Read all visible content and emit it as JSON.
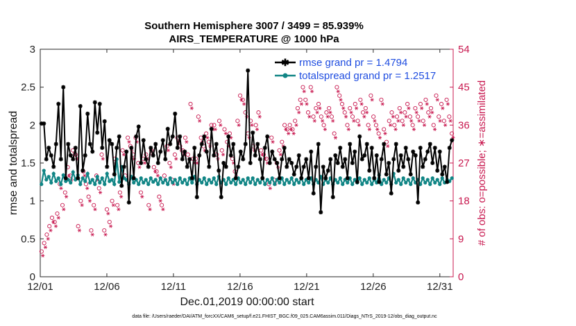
{
  "chart_data": {
    "type": "line",
    "title_line1": "Southern Hemisphere 3007 / 3499 = 85.939%",
    "title_line2": "AIRS_TEMPERATURE @ 1000 hPa",
    "ylabel": "rmse and totalspread",
    "ylabel_right": "# of obs: o=possible; ∗=assimilated",
    "xlabel": "Dec.01,2019 00:00:00 start",
    "footnote": "data file: /Users/raeder/DAI/ATM_forcXX/CAM6_setup/f.e21.FHIST_BGC.f09_025.CAM6assim.011/Diags_NTrS_2019-12/obs_diag_output.nc",
    "x_ticks": [
      1,
      6,
      11,
      16,
      21,
      26,
      31
    ],
    "x_tick_labels": [
      "12/01",
      "12/06",
      "12/11",
      "12/16",
      "12/21",
      "12/26",
      "12/31"
    ],
    "xlim": [
      1,
      32
    ],
    "ylim": [
      0,
      3
    ],
    "y_ticks": [
      0,
      0.5,
      1,
      1.5,
      2,
      2.5,
      3
    ],
    "y_tick_labels": [
      "0",
      "0.5",
      "1",
      "1.5",
      "2",
      "2.5",
      "3"
    ],
    "ylim_right": [
      0,
      54
    ],
    "y_ticks_right": [
      0,
      9,
      18,
      27,
      36,
      45,
      54
    ],
    "y_tick_labels_right": [
      "0",
      "9",
      "18",
      "27",
      "36",
      "45",
      "54"
    ],
    "series": [
      {
        "name": "rmse grand pr = 1.4794",
        "color": "#000000",
        "axis": "left",
        "values": [
          2.02,
          2.02,
          1.55,
          1.7,
          1.6,
          1.45,
          1.75,
          2.28,
          1.55,
          2.5,
          1.3,
          1.75,
          1.6,
          1.55,
          1.7,
          1.3,
          2.25,
          1.4,
          1.6,
          2.15,
          1.75,
          1.65,
          2.3,
          1.9,
          2.28,
          1.7,
          2.05,
          1.45,
          1.8,
          1.75,
          1.35,
          1.7,
          1.85,
          1.2,
          1.45,
          1.65,
          0.98,
          1.7,
          1.3,
          1.85,
          1.98,
          1.5,
          1.8,
          1.55,
          1.45,
          1.7,
          1.6,
          1.75,
          1.5,
          1.65,
          1.8,
          1.55,
          1.95,
          1.75,
          1.85,
          2.15,
          1.7,
          1.85,
          1.55,
          1.65,
          1.45,
          1.55,
          1.3,
          1.7,
          1.05,
          1.6,
          1.75,
          1.85,
          1.65,
          1.45,
          1.95,
          1.6,
          1.75,
          1.4,
          1.05,
          1.5,
          1.45,
          1.85,
          1.6,
          1.75,
          1.3,
          1.45,
          1.65,
          1.55,
          1.75,
          2.72,
          1.5,
          1.9,
          1.6,
          1.75,
          1.55,
          1.3,
          1.7,
          1.85,
          1.5,
          1.65,
          1.55,
          1.5,
          1.3,
          1.55,
          1.7,
          1.45,
          1.55,
          1.5,
          1.35,
          1.45,
          1.6,
          1.3,
          1.45,
          1.55,
          1.3,
          1.65,
          1.1,
          1.45,
          1.75,
          0.85,
          1.45,
          1.3,
          1.4,
          1.55,
          1.05,
          1.6,
          1.5,
          1.7,
          1.45,
          1.55,
          1.3,
          1.75,
          1.5,
          1.65,
          1.25,
          1.85,
          1.55,
          1.6,
          1.75,
          1.4,
          1.7,
          1.3,
          1.6,
          1.25,
          1.55,
          1.75,
          1.35,
          1.5,
          1.1,
          1.55,
          1.75,
          1.4,
          1.6,
          1.45,
          1.7,
          1.55,
          1.35,
          1.65,
          1.6,
          0.98,
          1.7,
          1.45,
          1.55,
          1.65,
          1.75,
          1.5,
          1.7,
          1.4,
          1.65,
          1.35,
          1.45,
          1.25,
          1.7,
          1.8
        ]
      },
      {
        "name": "totalspread grand pr = 1.2517",
        "color": "#108585",
        "axis": "left",
        "values": [
          1.22,
          1.4,
          1.28,
          1.32,
          1.24,
          1.36,
          1.26,
          1.3,
          1.22,
          1.34,
          1.26,
          1.28,
          1.24,
          1.38,
          1.28,
          1.34,
          1.22,
          1.3,
          1.26,
          1.36,
          1.24,
          1.28,
          1.22,
          1.32,
          1.24,
          1.3,
          1.22,
          1.36,
          1.26,
          1.28,
          1.22,
          1.55,
          1.25,
          1.45,
          1.3,
          1.28,
          1.22,
          1.32,
          1.24,
          1.28,
          1.22,
          1.3,
          1.24,
          1.28,
          1.22,
          1.3,
          1.25,
          1.28,
          1.22,
          1.3,
          1.24,
          1.28,
          1.22,
          1.3,
          1.24,
          1.28,
          1.22,
          1.3,
          1.24,
          1.28,
          1.22,
          1.3,
          1.24,
          1.32,
          1.22,
          1.28,
          1.24,
          1.3,
          1.22,
          1.28,
          1.24,
          1.3,
          1.22,
          1.32,
          1.24,
          1.28,
          1.22,
          1.3,
          1.24,
          1.28,
          1.22,
          1.3,
          1.24,
          1.28,
          1.22,
          1.3,
          1.24,
          1.3,
          1.22,
          1.28,
          1.24,
          1.3,
          1.22,
          1.28,
          1.24,
          1.3,
          1.22,
          1.28,
          1.24,
          1.3,
          1.22,
          1.28,
          1.24,
          1.3,
          1.22,
          1.28,
          1.24,
          1.3,
          1.22,
          1.28,
          1.24,
          1.3,
          1.22,
          1.28,
          1.24,
          1.32,
          1.22,
          1.28,
          1.24,
          1.3,
          1.22,
          1.28,
          1.24,
          1.3,
          1.22,
          1.28,
          1.24,
          1.3,
          1.22,
          1.28,
          1.24,
          1.3,
          1.22,
          1.28,
          1.24,
          1.3,
          1.22,
          1.28,
          1.24,
          1.34,
          1.22,
          1.28,
          1.24,
          1.3,
          1.22,
          1.36,
          1.24,
          1.28,
          1.22,
          1.3,
          1.24,
          1.28,
          1.22,
          1.3,
          1.24,
          1.28,
          1.22,
          1.3,
          1.24,
          1.28,
          1.22,
          1.3,
          1.24,
          1.28,
          1.22,
          1.3,
          1.24,
          1.28,
          1.26,
          1.3
        ]
      },
      {
        "name": "possible",
        "color": "#c8184f",
        "axis": "right",
        "marker": "o",
        "values": [
          6,
          8,
          10,
          12,
          14,
          13,
          15,
          22,
          17,
          20,
          26,
          24,
          30,
          29,
          12,
          18,
          25,
          22,
          19,
          11,
          17,
          24,
          21,
          29,
          11,
          16,
          13,
          18,
          28,
          17,
          20,
          30,
          24,
          33,
          31,
          29,
          33,
          27,
          20,
          28,
          29,
          17,
          30,
          26,
          25,
          19,
          17,
          24,
          31,
          27,
          23,
          29,
          33,
          31,
          30,
          33,
          29,
          41,
          28,
          28,
          38,
          33,
          31,
          34,
          32,
          36,
          36,
          29,
          37,
          30,
          35,
          32,
          34,
          28,
          25,
          37,
          43,
          42,
          39,
          34,
          37,
          31,
          36,
          39,
          30,
          29,
          28,
          22,
          33,
          23,
          27,
          30,
          32,
          36,
          35,
          36,
          35,
          37,
          40,
          42,
          45,
          42,
          39,
          45,
          38,
          40,
          41,
          38,
          36,
          39,
          40,
          38,
          34,
          45,
          43,
          41,
          39,
          36,
          40,
          38,
          41,
          37,
          42,
          39,
          40,
          36,
          43,
          38,
          36,
          34,
          42,
          35,
          32,
          37,
          39,
          36,
          38,
          40,
          37,
          39,
          41,
          38,
          36,
          40,
          38,
          41,
          37,
          42,
          39,
          40,
          36,
          43,
          38,
          41,
          37,
          42,
          38,
          34
        ]
      },
      {
        "name": "assimilated",
        "color": "#c8184f",
        "axis": "right",
        "marker": "*",
        "values": [
          5,
          7,
          9,
          11,
          13,
          12,
          14,
          21,
          16,
          19,
          24,
          23,
          29,
          28,
          11,
          17,
          24,
          21,
          18,
          10,
          16,
          23,
          20,
          28,
          10,
          15,
          12,
          17,
          27,
          16,
          19,
          29,
          23,
          32,
          30,
          28,
          32,
          26,
          19,
          27,
          28,
          16,
          29,
          25,
          24,
          18,
          16,
          23,
          30,
          26,
          22,
          28,
          32,
          30,
          29,
          32,
          28,
          40,
          27,
          27,
          37,
          32,
          30,
          33,
          31,
          35,
          35,
          28,
          36,
          29,
          34,
          31,
          33,
          27,
          24,
          36,
          42,
          41,
          38,
          33,
          36,
          30,
          35,
          38,
          29,
          28,
          27,
          21,
          32,
          22,
          26,
          29,
          31,
          35,
          34,
          35,
          34,
          36,
          39,
          41,
          44,
          41,
          38,
          44,
          37,
          39,
          40,
          37,
          35,
          38,
          39,
          37,
          33,
          44,
          42,
          40,
          38,
          35,
          39,
          37,
          40,
          36,
          41,
          38,
          39,
          35,
          42,
          37,
          35,
          33,
          41,
          34,
          31,
          36,
          38,
          35,
          37,
          39,
          36,
          38,
          40,
          37,
          35,
          39,
          37,
          40,
          36,
          41,
          38,
          39,
          35,
          42,
          37,
          40,
          36,
          41,
          37,
          33
        ]
      }
    ],
    "legend": [
      "rmse grand pr = 1.4794",
      "totalspread grand pr = 1.2517"
    ],
    "legend_position": "top-right",
    "grid": false
  }
}
